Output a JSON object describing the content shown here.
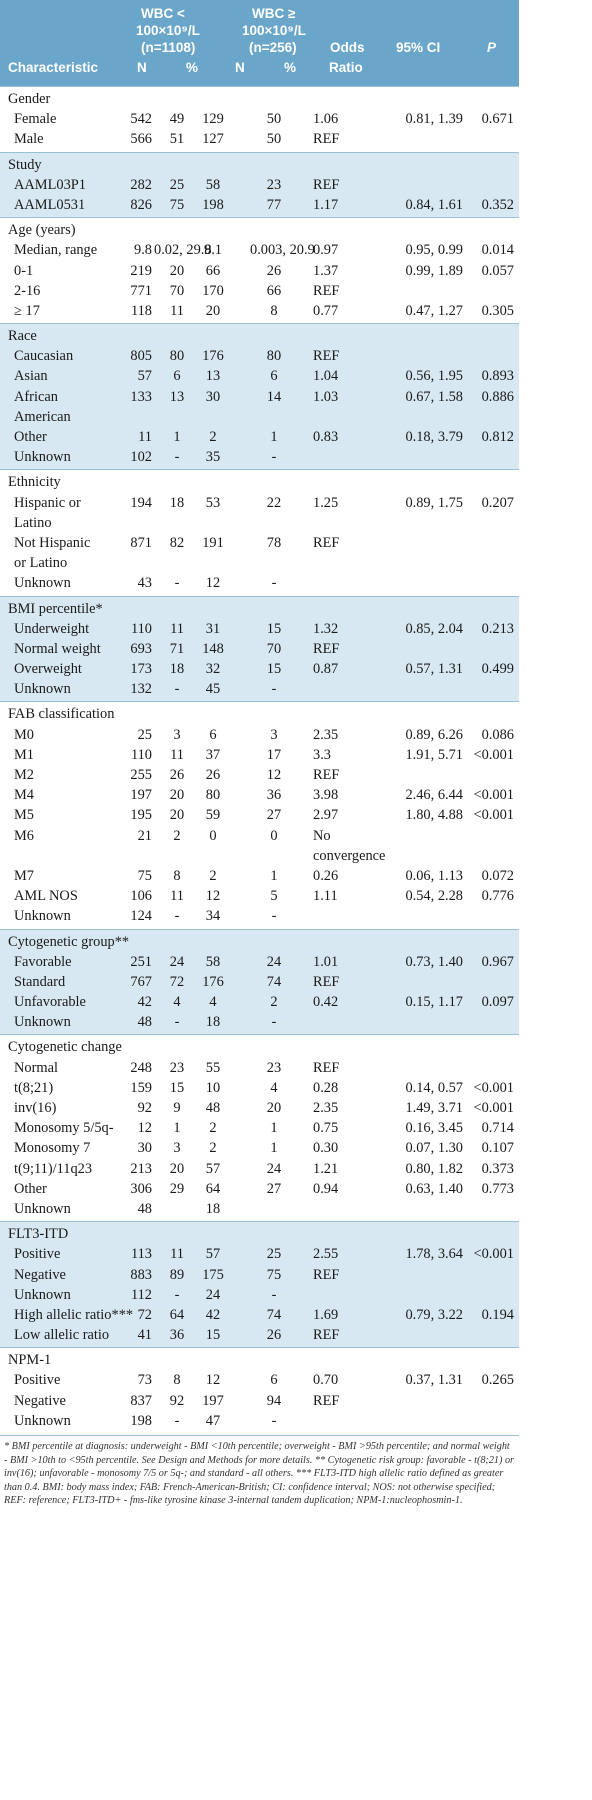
{
  "header": {
    "characteristic": "Characteristic",
    "group1_line1": "WBC <",
    "group1_line2": "100×10⁹/L",
    "group1_line3": "(n=1108)",
    "group2_line1": "WBC ≥",
    "group2_line2": "100×10⁹/L",
    "group2_line3": "(n=256)",
    "n": "N",
    "pct": "%",
    "odds1": "Odds",
    "odds2": "Ratio",
    "ci": "95% CI",
    "p": "P"
  },
  "sections": [
    {
      "title": "Gender",
      "shaded": false,
      "rows": [
        {
          "label": "Female",
          "n1": "542",
          "p1": "49",
          "n2": "129",
          "p2": "50",
          "or": "1.06",
          "ci": "0.81, 1.39",
          "p": "0.671"
        },
        {
          "label": "Male",
          "n1": "566",
          "p1": "51",
          "n2": "127",
          "p2": "50",
          "or": "REF",
          "ci": "",
          "p": ""
        }
      ]
    },
    {
      "title": "Study",
      "shaded": true,
      "rows": [
        {
          "label": "AAML03P1",
          "n1": "282",
          "p1": "25",
          "n2": "58",
          "p2": "23",
          "or": "REF",
          "ci": "",
          "p": ""
        },
        {
          "label": "AAML0531",
          "n1": "826",
          "p1": "75",
          "n2": "198",
          "p2": "77",
          "or": "1.17",
          "ci": "0.84, 1.61",
          "p": "0.352"
        }
      ]
    },
    {
      "title": "Age (years)",
      "shaded": false,
      "rows": [
        {
          "label": "Median, range",
          "n1": "9.8",
          "p1": "0.02, 29.8",
          "n2": "9.1",
          "p2": "0.003, 20.9",
          "or": "0.97",
          "ci": "0.95, 0.99",
          "p": "0.014"
        },
        {
          "label": "0-1",
          "n1": "219",
          "p1": "20",
          "n2": "66",
          "p2": "26",
          "or": "1.37",
          "ci": "0.99, 1.89",
          "p": "0.057"
        },
        {
          "label": "2-16",
          "n1": "771",
          "p1": "70",
          "n2": "170",
          "p2": "66",
          "or": "REF",
          "ci": "",
          "p": ""
        },
        {
          "label": "≥ 17",
          "n1": "118",
          "p1": "11",
          "n2": "20",
          "p2": "8",
          "or": "0.77",
          "ci": "0.47, 1.27",
          "p": "0.305"
        }
      ]
    },
    {
      "title": "Race",
      "shaded": true,
      "rows": [
        {
          "label": "Caucasian",
          "n1": "805",
          "p1": "80",
          "n2": "176",
          "p2": "80",
          "or": "REF",
          "ci": "",
          "p": ""
        },
        {
          "label": "Asian",
          "n1": "57",
          "p1": "6",
          "n2": "13",
          "p2": "6",
          "or": "1.04",
          "ci": "0.56, 1.95",
          "p": "0.893"
        },
        {
          "label": "African",
          "n1": "133",
          "p1": "13",
          "n2": "30",
          "p2": "14",
          "or": "1.03",
          "ci": "0.67, 1.58",
          "p": "0.886"
        },
        {
          "label": "American",
          "n1": "",
          "p1": "",
          "n2": "",
          "p2": "",
          "or": "",
          "ci": "",
          "p": ""
        },
        {
          "label": "Other",
          "n1": "11",
          "p1": "1",
          "n2": "2",
          "p2": "1",
          "or": "0.83",
          "ci": "0.18, 3.79",
          "p": "0.812"
        },
        {
          "label": "Unknown",
          "n1": "102",
          "p1": "-",
          "n2": "35",
          "p2": "-",
          "or": "",
          "ci": "",
          "p": ""
        }
      ]
    },
    {
      "title": "Ethnicity",
      "shaded": false,
      "rows": [
        {
          "label": "Hispanic or",
          "n1": "194",
          "p1": "18",
          "n2": "53",
          "p2": "22",
          "or": "1.25",
          "ci": "0.89, 1.75",
          "p": "0.207"
        },
        {
          "label": "Latino",
          "n1": "",
          "p1": "",
          "n2": "",
          "p2": "",
          "or": "",
          "ci": "",
          "p": ""
        },
        {
          "label": "Not Hispanic",
          "n1": "871",
          "p1": "82",
          "n2": "191",
          "p2": "78",
          "or": "REF",
          "ci": "",
          "p": ""
        },
        {
          "label": "or Latino",
          "n1": "",
          "p1": "",
          "n2": "",
          "p2": "",
          "or": "",
          "ci": "",
          "p": ""
        },
        {
          "label": "Unknown",
          "n1": "43",
          "p1": "-",
          "n2": "12",
          "p2": "-",
          "or": "",
          "ci": "",
          "p": ""
        }
      ]
    },
    {
      "title": "BMI percentile*",
      "shaded": true,
      "rows": [
        {
          "label": "Underweight",
          "n1": "110",
          "p1": "11",
          "n2": "31",
          "p2": "15",
          "or": "1.32",
          "ci": "0.85, 2.04",
          "p": "0.213"
        },
        {
          "label": "Normal weight",
          "n1": "693",
          "p1": "71",
          "n2": "148",
          "p2": "70",
          "or": "REF",
          "ci": "",
          "p": ""
        },
        {
          "label": "Overweight",
          "n1": "173",
          "p1": "18",
          "n2": "32",
          "p2": "15",
          "or": "0.87",
          "ci": "0.57, 1.31",
          "p": "0.499"
        },
        {
          "label": "Unknown",
          "n1": "132",
          "p1": "-",
          "n2": "45",
          "p2": "-",
          "or": "",
          "ci": "",
          "p": ""
        }
      ]
    },
    {
      "title": "FAB classification",
      "shaded": false,
      "rows": [
        {
          "label": "M0",
          "n1": "25",
          "p1": "3",
          "n2": "6",
          "p2": "3",
          "or": "2.35",
          "ci": "0.89, 6.26",
          "p": "0.086"
        },
        {
          "label": "M1",
          "n1": "110",
          "p1": "11",
          "n2": "37",
          "p2": "17",
          "or": "3.3",
          "ci": "1.91, 5.71",
          "p": "<0.001"
        },
        {
          "label": "M2",
          "n1": "255",
          "p1": "26",
          "n2": "26",
          "p2": "12",
          "or": "REF",
          "ci": "",
          "p": ""
        },
        {
          "label": "M4",
          "n1": "197",
          "p1": "20",
          "n2": "80",
          "p2": "36",
          "or": "3.98",
          "ci": "2.46, 6.44",
          "p": "<0.001"
        },
        {
          "label": "M5",
          "n1": "195",
          "p1": "20",
          "n2": "59",
          "p2": "27",
          "or": "2.97",
          "ci": "1.80, 4.88",
          "p": "<0.001"
        },
        {
          "label": "M6",
          "n1": "21",
          "p1": "2",
          "n2": "0",
          "p2": "0",
          "or": "No",
          "ci": "",
          "p": ""
        },
        {
          "label": "",
          "n1": "",
          "p1": "",
          "n2": "",
          "p2": "",
          "or": "convergence",
          "ci": "",
          "p": ""
        },
        {
          "label": "M7",
          "n1": "75",
          "p1": "8",
          "n2": "2",
          "p2": "1",
          "or": "0.26",
          "ci": "0.06, 1.13",
          "p": "0.072"
        },
        {
          "label": "AML NOS",
          "n1": "106",
          "p1": "11",
          "n2": "12",
          "p2": "5",
          "or": "1.11",
          "ci": "0.54, 2.28",
          "p": "0.776"
        },
        {
          "label": "Unknown",
          "n1": "124",
          "p1": "-",
          "n2": "34",
          "p2": "-",
          "or": "",
          "ci": "",
          "p": ""
        }
      ]
    },
    {
      "title": "Cytogenetic group**",
      "shaded": true,
      "rows": [
        {
          "label": "Favorable",
          "n1": "251",
          "p1": "24",
          "n2": "58",
          "p2": "24",
          "or": "1.01",
          "ci": "0.73, 1.40",
          "p": "0.967"
        },
        {
          "label": "Standard",
          "n1": "767",
          "p1": "72",
          "n2": "176",
          "p2": "74",
          "or": "REF",
          "ci": "",
          "p": ""
        },
        {
          "label": "Unfavorable",
          "n1": "42",
          "p1": "4",
          "n2": "4",
          "p2": "2",
          "or": "0.42",
          "ci": "0.15, 1.17",
          "p": "0.097"
        },
        {
          "label": "Unknown",
          "n1": "48",
          "p1": "-",
          "n2": "18",
          "p2": "-",
          "or": "",
          "ci": "",
          "p": ""
        }
      ]
    },
    {
      "title": "Cytogenetic change",
      "shaded": false,
      "rows": [
        {
          "label": "Normal",
          "n1": "248",
          "p1": "23",
          "n2": "55",
          "p2": "23",
          "or": "REF",
          "ci": "",
          "p": ""
        },
        {
          "label": "t(8;21)",
          "n1": "159",
          "p1": "15",
          "n2": "10",
          "p2": "4",
          "or": "0.28",
          "ci": "0.14, 0.57",
          "p": "<0.001"
        },
        {
          "label": "inv(16)",
          "n1": "92",
          "p1": "9",
          "n2": "48",
          "p2": "20",
          "or": "2.35",
          "ci": "1.49, 3.71",
          "p": "<0.001"
        },
        {
          "label": "Monosomy 5/5q-",
          "n1": "12",
          "p1": "1",
          "n2": "2",
          "p2": "1",
          "or": "0.75",
          "ci": "0.16, 3.45",
          "p": "0.714"
        },
        {
          "label": "Monosomy 7",
          "n1": "30",
          "p1": "3",
          "n2": "2",
          "p2": "1",
          "or": "0.30",
          "ci": "0.07, 1.30",
          "p": "0.107"
        },
        {
          "label": "t(9;11)/11q23",
          "n1": "213",
          "p1": "20",
          "n2": "57",
          "p2": "24",
          "or": "1.21",
          "ci": "0.80, 1.82",
          "p": "0.373"
        },
        {
          "label": "Other",
          "n1": "306",
          "p1": "29",
          "n2": "64",
          "p2": "27",
          "or": "0.94",
          "ci": "0.63, 1.40",
          "p": "0.773"
        },
        {
          "label": "Unknown",
          "n1": "48",
          "p1": "",
          "n2": "18",
          "p2": "",
          "or": "",
          "ci": "",
          "p": ""
        }
      ]
    },
    {
      "title": "FLT3-ITD",
      "shaded": true,
      "rows": [
        {
          "label": "Positive",
          "n1": "113",
          "p1": "11",
          "n2": "57",
          "p2": "25",
          "or": "2.55",
          "ci": "1.78, 3.64",
          "p": "<0.001"
        },
        {
          "label": "Negative",
          "n1": "883",
          "p1": "89",
          "n2": "175",
          "p2": "75",
          "or": "REF",
          "ci": "",
          "p": ""
        },
        {
          "label": "Unknown",
          "n1": "112",
          "p1": "-",
          "n2": "24",
          "p2": "-",
          "or": "",
          "ci": "",
          "p": ""
        },
        {
          "label": "High allelic ratio***",
          "n1": "72",
          "p1": "64",
          "n2": "42",
          "p2": "74",
          "or": "1.69",
          "ci": "0.79, 3.22",
          "p": "0.194"
        },
        {
          "label": "Low allelic ratio",
          "n1": "41",
          "p1": "36",
          "n2": "15",
          "p2": "26",
          "or": "REF",
          "ci": "",
          "p": ""
        }
      ]
    },
    {
      "title": "NPM-1",
      "shaded": false,
      "rows": [
        {
          "label": "Positive",
          "n1": "73",
          "p1": "8",
          "n2": "12",
          "p2": "6",
          "or": "0.70",
          "ci": "0.37, 1.31",
          "p": "0.265"
        },
        {
          "label": "Negative",
          "n1": "837",
          "p1": "92",
          "n2": "197",
          "p2": "94",
          "or": "REF",
          "ci": "",
          "p": ""
        },
        {
          "label": "Unknown",
          "n1": "198",
          "p1": "-",
          "n2": "47",
          "p2": "-",
          "or": "",
          "ci": "",
          "p": ""
        }
      ]
    }
  ],
  "footnote": "* BMI percentile at diagnosis: underweight - BMI <10th percentile; overweight - BMI >95th percentile; and normal weight - BMI >10th to <95th percentile. See Design and Methods for more details. ** Cytogenetic risk group: favorable - t(8;21) or inv(16); unfavorable - monosomy 7/5 or 5q-; and standard - all others. *** FLT3-ITD high allelic ratio defined as greater than 0.4. BMI: body mass index; FAB: French-American-British; CI: confidence interval; NOS: not otherwise specified; REF: reference; FLT3-ITD+ - fms-like tyrosine kinase 3-internal tandem duplication; NPM-1:nucleophosmin-1."
}
